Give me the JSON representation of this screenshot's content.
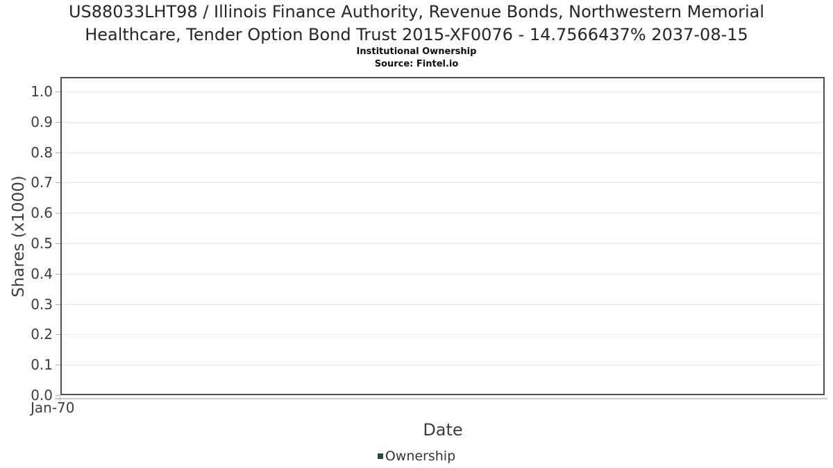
{
  "chart": {
    "title_lines": [
      "US88033LHT98 / Illinois Finance Authority, Revenue Bonds, Northwestern Memorial",
      "Healthcare, Tender Option Bond Trust 2015-XF0076 - 14.7566437% 2037-08-15"
    ],
    "subtitle": "Institutional Ownership",
    "source": "Source: Fintel.io",
    "ylabel": "Shares (x1000)",
    "xlabel": "Date",
    "y_tick_labels": [
      "0.0",
      "0.1",
      "0.2",
      "0.3",
      "0.4",
      "0.5",
      "0.6",
      "0.7",
      "0.8",
      "0.9",
      "1.0"
    ],
    "x_tick_labels": [
      "Jan-70"
    ],
    "legend": {
      "items": [
        {
          "label": "Ownership",
          "color": "#235229"
        }
      ]
    },
    "colors": {
      "background": "#ffffff",
      "plot_border": "#4f4f4f",
      "gridline": "#e7e7e7",
      "tick": "#adadad",
      "axis_text": "#3d3d3d",
      "title_text": "#262626",
      "legend_marker": "#235229"
    }
  },
  "chart_data": {
    "type": "line",
    "title": "US88033LHT98 / Illinois Finance Authority, Revenue Bonds, Northwestern Memorial Healthcare, Tender Option Bond Trust 2015-XF0076 - 14.7566437% 2037-08-15",
    "subtitle": "Institutional Ownership",
    "source": "Fintel.io",
    "xlabel": "Date",
    "ylabel": "Shares (x1000)",
    "series": [
      {
        "name": "Ownership",
        "color": "#235229",
        "x": [],
        "values": []
      }
    ],
    "x_ticks": [
      "Jan-70"
    ],
    "y_ticks": [
      0.0,
      0.1,
      0.2,
      0.3,
      0.4,
      0.5,
      0.6,
      0.7,
      0.8,
      0.9,
      1.0
    ],
    "ylim": [
      0,
      1.048
    ],
    "grid": true,
    "legend_position": "bottom"
  }
}
